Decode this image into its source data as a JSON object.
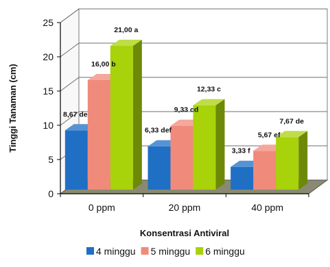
{
  "chart_data": {
    "type": "bar",
    "title": "",
    "xlabel": "Konsentrasi Antiviral",
    "ylabel": "Tinggi Tanaman (cm)",
    "categories": [
      "0 ppm",
      "20 ppm",
      "40 ppm"
    ],
    "ylim": [
      0,
      25
    ],
    "yticks": [
      0,
      5,
      10,
      15,
      20,
      25
    ],
    "grid": true,
    "legend_position": "bottom",
    "series": [
      {
        "name": "4 minggu",
        "color": "#1f6fc5",
        "values": [
          8.67,
          6.33,
          3.33
        ],
        "labels": [
          "8,67 de",
          "6,33 def",
          "3,33 f"
        ]
      },
      {
        "name": "5 minggu",
        "color": "#f08a7a",
        "values": [
          16.0,
          9.33,
          5.67
        ],
        "labels": [
          "16,00 b",
          "9,33 cd",
          "5,67 ef"
        ]
      },
      {
        "name": "6 minggu",
        "color": "#a8d20a",
        "values": [
          21.0,
          12.33,
          7.67
        ],
        "labels": [
          "21,00 a",
          "12,33 c",
          "7,67 de"
        ]
      }
    ]
  }
}
